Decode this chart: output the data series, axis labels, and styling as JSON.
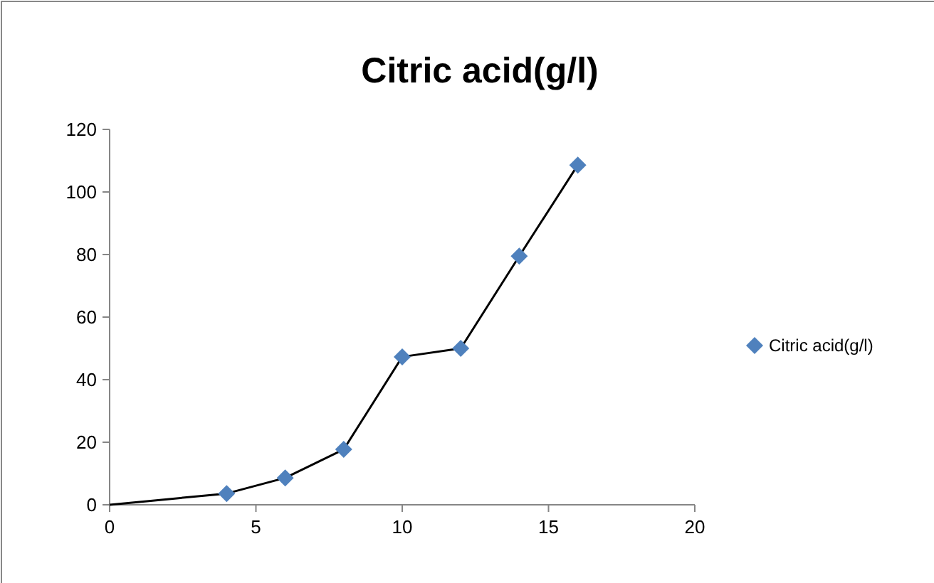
{
  "chart_data": {
    "type": "scatter",
    "title": "Citric acid(g/l)",
    "xlim": [
      0,
      20
    ],
    "xticks": [
      0,
      5,
      10,
      15,
      20
    ],
    "ylim": [
      0,
      120
    ],
    "yticks": [
      0,
      20,
      40,
      60,
      80,
      100,
      120
    ],
    "grid": false,
    "legend": "right",
    "series": [
      {
        "type": "line",
        "color": "#000000",
        "x": [
          0,
          4,
          6,
          8,
          10,
          12,
          14,
          16
        ],
        "values": [
          0,
          3.6,
          8.6,
          17.7,
          47.3,
          50,
          79.5,
          108.6
        ],
        "marker": "none"
      },
      {
        "name": "Citric acid(g/l)",
        "color": "#4f81bd",
        "x": [
          4,
          6,
          8,
          10,
          12,
          14,
          16
        ],
        "values": [
          3.6,
          8.6,
          17.7,
          47.3,
          50,
          79.5,
          108.6
        ],
        "marker": "diamond"
      }
    ]
  }
}
